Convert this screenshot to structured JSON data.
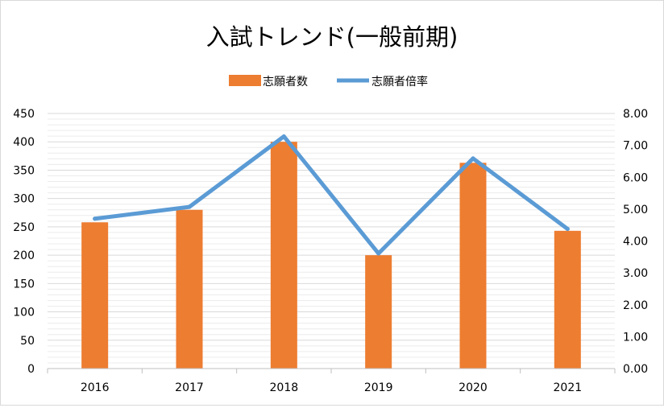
{
  "chart_data": {
    "type": "bar+line",
    "title": "入試トレンド(一般前期)",
    "categories": [
      "2016",
      "2017",
      "2018",
      "2019",
      "2020",
      "2021"
    ],
    "series": [
      {
        "name": "志願者数",
        "type": "bar",
        "axis": "left",
        "color": "#ED7D31",
        "values": [
          258,
          280,
          400,
          200,
          363,
          243
        ]
      },
      {
        "name": "志願者倍率",
        "type": "line",
        "axis": "right",
        "color": "#5B9BD5",
        "values": [
          4.7,
          5.07,
          7.28,
          3.61,
          6.59,
          4.38
        ]
      }
    ],
    "y_left": {
      "min": 0,
      "max": 450,
      "step": 50,
      "ticks": [
        "0",
        "50",
        "100",
        "150",
        "200",
        "250",
        "300",
        "350",
        "400",
        "450"
      ]
    },
    "y_right": {
      "min": 0,
      "max": 8,
      "step": 1,
      "ticks": [
        "0.00",
        "1.00",
        "2.00",
        "3.00",
        "4.00",
        "5.00",
        "6.00",
        "7.00",
        "8.00"
      ]
    },
    "legend_position": "top",
    "grid": true
  }
}
